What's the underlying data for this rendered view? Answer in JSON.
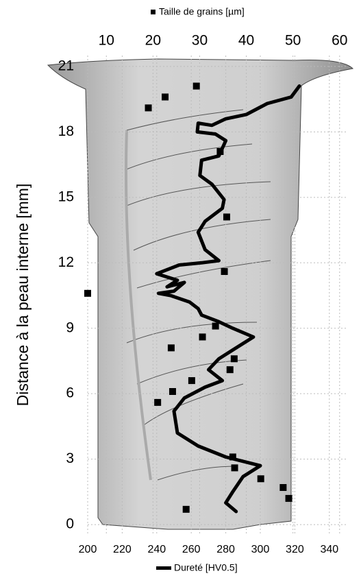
{
  "chart_data": {
    "type": "scatter",
    "ylabel": "Distance à la peau interne [mm]",
    "ylim": [
      -0.5,
      21.5
    ],
    "yticks": [
      0,
      3,
      6,
      9,
      12,
      15,
      18,
      21
    ],
    "xlim": [
      200,
      350
    ],
    "xticks": [
      200,
      220,
      240,
      260,
      280,
      300,
      320,
      340
    ],
    "x2lim": [
      6,
      61.5
    ],
    "x2ticks": [
      10,
      20,
      30,
      40,
      50,
      60
    ],
    "grid": true,
    "series": [
      {
        "name": "Taille de grains [µm]",
        "type": "scatter",
        "color": "#000000",
        "xaxis": "x2",
        "x": [
          19.0,
          22.6,
          29.3,
          34.4,
          35.8,
          35.3,
          6.0,
          30.6,
          33.4,
          23.9,
          37.4,
          36.5,
          28.3,
          24.2,
          21.0,
          37.1,
          37.5,
          43.1,
          47.9,
          49.1,
          27.1
        ],
        "values": [
          19.1,
          19.6,
          20.1,
          17.1,
          14.1,
          11.6,
          10.6,
          8.6,
          9.1,
          8.1,
          7.6,
          7.1,
          6.6,
          6.1,
          5.6,
          3.1,
          2.6,
          2.1,
          1.7,
          1.2,
          0.7
        ]
      },
      {
        "name": "Dureté [HV0.5]",
        "type": "line",
        "color": "#000000",
        "xaxis": "x",
        "x": [
          322.6,
          317.9,
          304,
          292,
          280,
          272,
          264,
          263.5,
          274,
          280,
          276,
          266,
          265,
          272,
          279,
          278,
          268,
          264,
          268,
          276,
          266,
          253,
          240,
          252,
          246,
          256,
          250,
          241,
          248,
          259,
          264,
          266,
          276,
          284,
          296,
          284,
          276,
          270,
          278,
          268,
          256,
          250,
          252,
          264,
          280,
          300,
          290,
          284,
          280,
          286
        ],
        "values": [
          20.1,
          19.6,
          19.3,
          18.8,
          18.6,
          18.3,
          18.4,
          18.0,
          17.9,
          17.6,
          16.9,
          16.7,
          16.0,
          15.6,
          14.9,
          14.5,
          13.9,
          13.4,
          12.6,
          12.1,
          12.0,
          11.9,
          11.5,
          11.2,
          10.9,
          11.1,
          10.7,
          10.6,
          10.5,
          10.2,
          9.9,
          9.6,
          9.3,
          9.0,
          8.6,
          8.0,
          7.6,
          7.1,
          6.6,
          6.3,
          5.8,
          5.2,
          4.2,
          3.6,
          3.1,
          2.7,
          2.2,
          1.5,
          1.0,
          0.6
        ]
      }
    ]
  }
}
